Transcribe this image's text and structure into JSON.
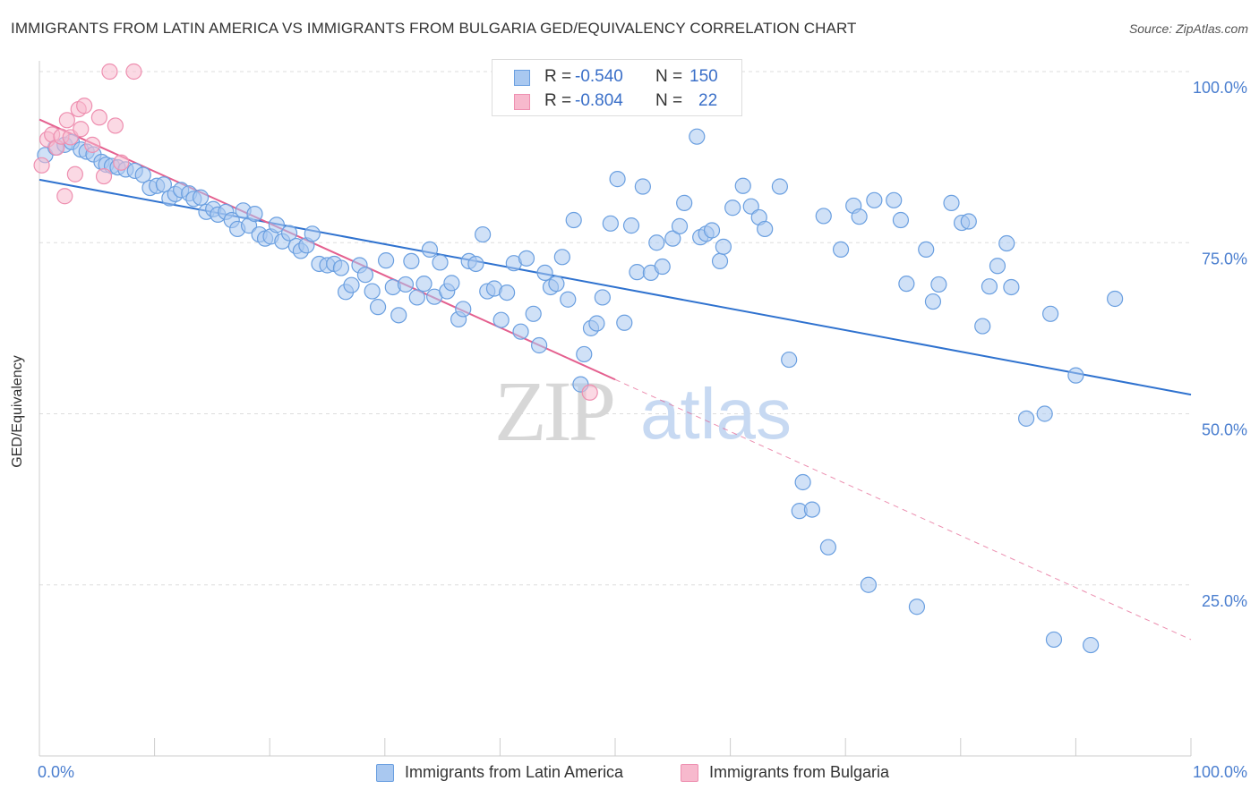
{
  "title": "IMMIGRANTS FROM LATIN AMERICA VS IMMIGRANTS FROM BULGARIA GED/EQUIVALENCY CORRELATION CHART",
  "source": "Source: ZipAtlas.com",
  "watermark": {
    "zip": "ZIP",
    "atlas": "atlas"
  },
  "legend_top": [
    {
      "r_label": "R =",
      "r_value": "-0.540",
      "n_label": "N =",
      "n_value": "150"
    },
    {
      "r_label": "R =",
      "r_value": "-0.804",
      "n_label": "N =",
      "n_value": "22"
    }
  ],
  "legend_bottom": [
    {
      "label": "Immigrants from Latin America"
    },
    {
      "label": "Immigrants from Bulgaria"
    }
  ],
  "colors": {
    "blue_fill": "#a9c8f0",
    "blue_stroke": "#6a9fe0",
    "blue_line": "#2f72cf",
    "pink_fill": "#f7b9cd",
    "pink_stroke": "#ee8fb0",
    "pink_line": "#e4608f",
    "grid": "#dddddd",
    "axis_text": "#4a7ecf"
  },
  "chart_data": {
    "type": "scatter",
    "ylabel": "GED/Equivalency",
    "xlim": [
      0,
      100
    ],
    "ylim": [
      0,
      102
    ],
    "x_tick_labels": [
      "0.0%",
      "100.0%"
    ],
    "y_ticks": [
      25,
      50,
      75,
      100
    ],
    "y_tick_labels": [
      "25.0%",
      "50.0%",
      "75.0%",
      "100.0%"
    ],
    "grid": "horizontal dashed",
    "series": [
      {
        "name": "Immigrants from Latin America",
        "trend": {
          "x": [
            0,
            100
          ],
          "y": [
            84.2,
            52.8
          ]
        },
        "points": [
          [
            0.5,
            87.8
          ],
          [
            1.4,
            88.9
          ],
          [
            2.2,
            89.3
          ],
          [
            2.8,
            89.7
          ],
          [
            3.6,
            88.6
          ],
          [
            4.1,
            88.3
          ],
          [
            4.7,
            87.9
          ],
          [
            5.4,
            86.8
          ],
          [
            5.8,
            86.4
          ],
          [
            6.3,
            86.2
          ],
          [
            6.8,
            86.0
          ],
          [
            7.5,
            85.7
          ],
          [
            8.3,
            85.5
          ],
          [
            9.0,
            84.9
          ],
          [
            9.6,
            83.0
          ],
          [
            10.2,
            83.3
          ],
          [
            10.8,
            83.5
          ],
          [
            11.3,
            81.5
          ],
          [
            11.8,
            82.1
          ],
          [
            12.3,
            82.7
          ],
          [
            13.0,
            82.2
          ],
          [
            13.4,
            81.4
          ],
          [
            14.0,
            81.6
          ],
          [
            14.5,
            79.5
          ],
          [
            15.1,
            79.9
          ],
          [
            15.5,
            79.1
          ],
          [
            16.2,
            79.5
          ],
          [
            16.7,
            78.3
          ],
          [
            17.2,
            77.0
          ],
          [
            17.7,
            79.7
          ],
          [
            18.2,
            77.5
          ],
          [
            18.7,
            79.2
          ],
          [
            19.1,
            76.2
          ],
          [
            19.6,
            75.6
          ],
          [
            20.1,
            75.9
          ],
          [
            20.6,
            77.6
          ],
          [
            21.1,
            75.2
          ],
          [
            21.7,
            76.4
          ],
          [
            22.3,
            74.5
          ],
          [
            22.7,
            73.8
          ],
          [
            23.2,
            74.6
          ],
          [
            23.7,
            76.3
          ],
          [
            24.3,
            71.9
          ],
          [
            25.0,
            71.7
          ],
          [
            25.6,
            71.9
          ],
          [
            26.2,
            71.3
          ],
          [
            26.6,
            67.8
          ],
          [
            27.1,
            68.8
          ],
          [
            27.8,
            71.7
          ],
          [
            28.3,
            70.3
          ],
          [
            28.9,
            67.9
          ],
          [
            29.4,
            65.6
          ],
          [
            30.1,
            72.4
          ],
          [
            30.7,
            68.5
          ],
          [
            31.2,
            64.4
          ],
          [
            31.8,
            68.9
          ],
          [
            32.3,
            72.3
          ],
          [
            32.8,
            67.0
          ],
          [
            33.4,
            69.0
          ],
          [
            33.9,
            74.0
          ],
          [
            34.3,
            67.1
          ],
          [
            34.8,
            72.1
          ],
          [
            35.4,
            67.9
          ],
          [
            35.8,
            69.1
          ],
          [
            36.4,
            63.8
          ],
          [
            36.8,
            65.3
          ],
          [
            37.3,
            72.3
          ],
          [
            37.9,
            71.9
          ],
          [
            38.5,
            76.2
          ],
          [
            38.9,
            67.9
          ],
          [
            39.5,
            68.3
          ],
          [
            40.1,
            63.7
          ],
          [
            40.6,
            67.7
          ],
          [
            41.2,
            72.0
          ],
          [
            41.8,
            62.0
          ],
          [
            42.3,
            72.7
          ],
          [
            42.9,
            64.6
          ],
          [
            43.4,
            60.0
          ],
          [
            43.9,
            70.6
          ],
          [
            44.4,
            68.5
          ],
          [
            44.9,
            69.0
          ],
          [
            45.4,
            72.9
          ],
          [
            45.9,
            66.7
          ],
          [
            46.4,
            78.3
          ],
          [
            47.0,
            54.3
          ],
          [
            47.3,
            58.7
          ],
          [
            47.9,
            62.5
          ],
          [
            48.4,
            63.2
          ],
          [
            48.9,
            67.0
          ],
          [
            49.6,
            77.8
          ],
          [
            50.2,
            84.3
          ],
          [
            50.8,
            63.3
          ],
          [
            51.4,
            77.5
          ],
          [
            51.9,
            70.7
          ],
          [
            52.4,
            83.2
          ],
          [
            53.1,
            70.6
          ],
          [
            53.6,
            75.0
          ],
          [
            54.1,
            71.5
          ],
          [
            55.0,
            75.6
          ],
          [
            55.6,
            77.4
          ],
          [
            56.0,
            80.8
          ],
          [
            57.1,
            90.5
          ],
          [
            57.4,
            75.8
          ],
          [
            57.9,
            76.3
          ],
          [
            58.4,
            76.8
          ],
          [
            59.1,
            72.3
          ],
          [
            59.4,
            74.4
          ],
          [
            60.2,
            80.1
          ],
          [
            61.1,
            83.3
          ],
          [
            61.8,
            80.3
          ],
          [
            62.5,
            78.7
          ],
          [
            63.0,
            77.0
          ],
          [
            64.3,
            83.2
          ],
          [
            65.1,
            57.9
          ],
          [
            66.0,
            35.8
          ],
          [
            66.3,
            40.0
          ],
          [
            67.1,
            36.0
          ],
          [
            68.1,
            78.9
          ],
          [
            68.5,
            30.5
          ],
          [
            69.6,
            74.0
          ],
          [
            70.7,
            80.4
          ],
          [
            71.2,
            78.8
          ],
          [
            72.0,
            25.0
          ],
          [
            72.5,
            81.2
          ],
          [
            74.2,
            81.2
          ],
          [
            74.8,
            78.3
          ],
          [
            75.3,
            69.0
          ],
          [
            76.2,
            21.8
          ],
          [
            77.0,
            74.0
          ],
          [
            77.6,
            66.4
          ],
          [
            78.1,
            68.9
          ],
          [
            79.2,
            80.8
          ],
          [
            80.1,
            77.9
          ],
          [
            80.7,
            78.1
          ],
          [
            81.9,
            62.8
          ],
          [
            82.5,
            68.6
          ],
          [
            83.2,
            71.6
          ],
          [
            84.0,
            74.9
          ],
          [
            84.4,
            68.5
          ],
          [
            85.7,
            49.3
          ],
          [
            87.3,
            50.0
          ],
          [
            87.8,
            64.6
          ],
          [
            88.1,
            17.0
          ],
          [
            90.0,
            55.6
          ],
          [
            91.3,
            16.2
          ],
          [
            93.4,
            66.8
          ]
        ]
      },
      {
        "name": "Immigrants from Bulgaria",
        "trend": {
          "x": [
            0,
            50
          ],
          "y": [
            93.0,
            55.0
          ]
        },
        "trend_extension": {
          "x": [
            50,
            100
          ],
          "y": [
            55.0,
            17.0
          ]
        },
        "points": [
          [
            0.2,
            86.3
          ],
          [
            0.7,
            90.1
          ],
          [
            1.1,
            90.8
          ],
          [
            1.5,
            88.9
          ],
          [
            1.9,
            90.5
          ],
          [
            2.2,
            81.8
          ],
          [
            2.4,
            92.9
          ],
          [
            2.7,
            90.4
          ],
          [
            3.1,
            85.0
          ],
          [
            3.4,
            94.5
          ],
          [
            3.6,
            91.6
          ],
          [
            3.9,
            95.0
          ],
          [
            4.6,
            89.3
          ],
          [
            5.2,
            93.3
          ],
          [
            5.6,
            84.7
          ],
          [
            6.1,
            100.0
          ],
          [
            6.6,
            92.1
          ],
          [
            7.1,
            86.7
          ],
          [
            8.2,
            100.0
          ],
          [
            47.8,
            53.1
          ]
        ]
      }
    ]
  }
}
